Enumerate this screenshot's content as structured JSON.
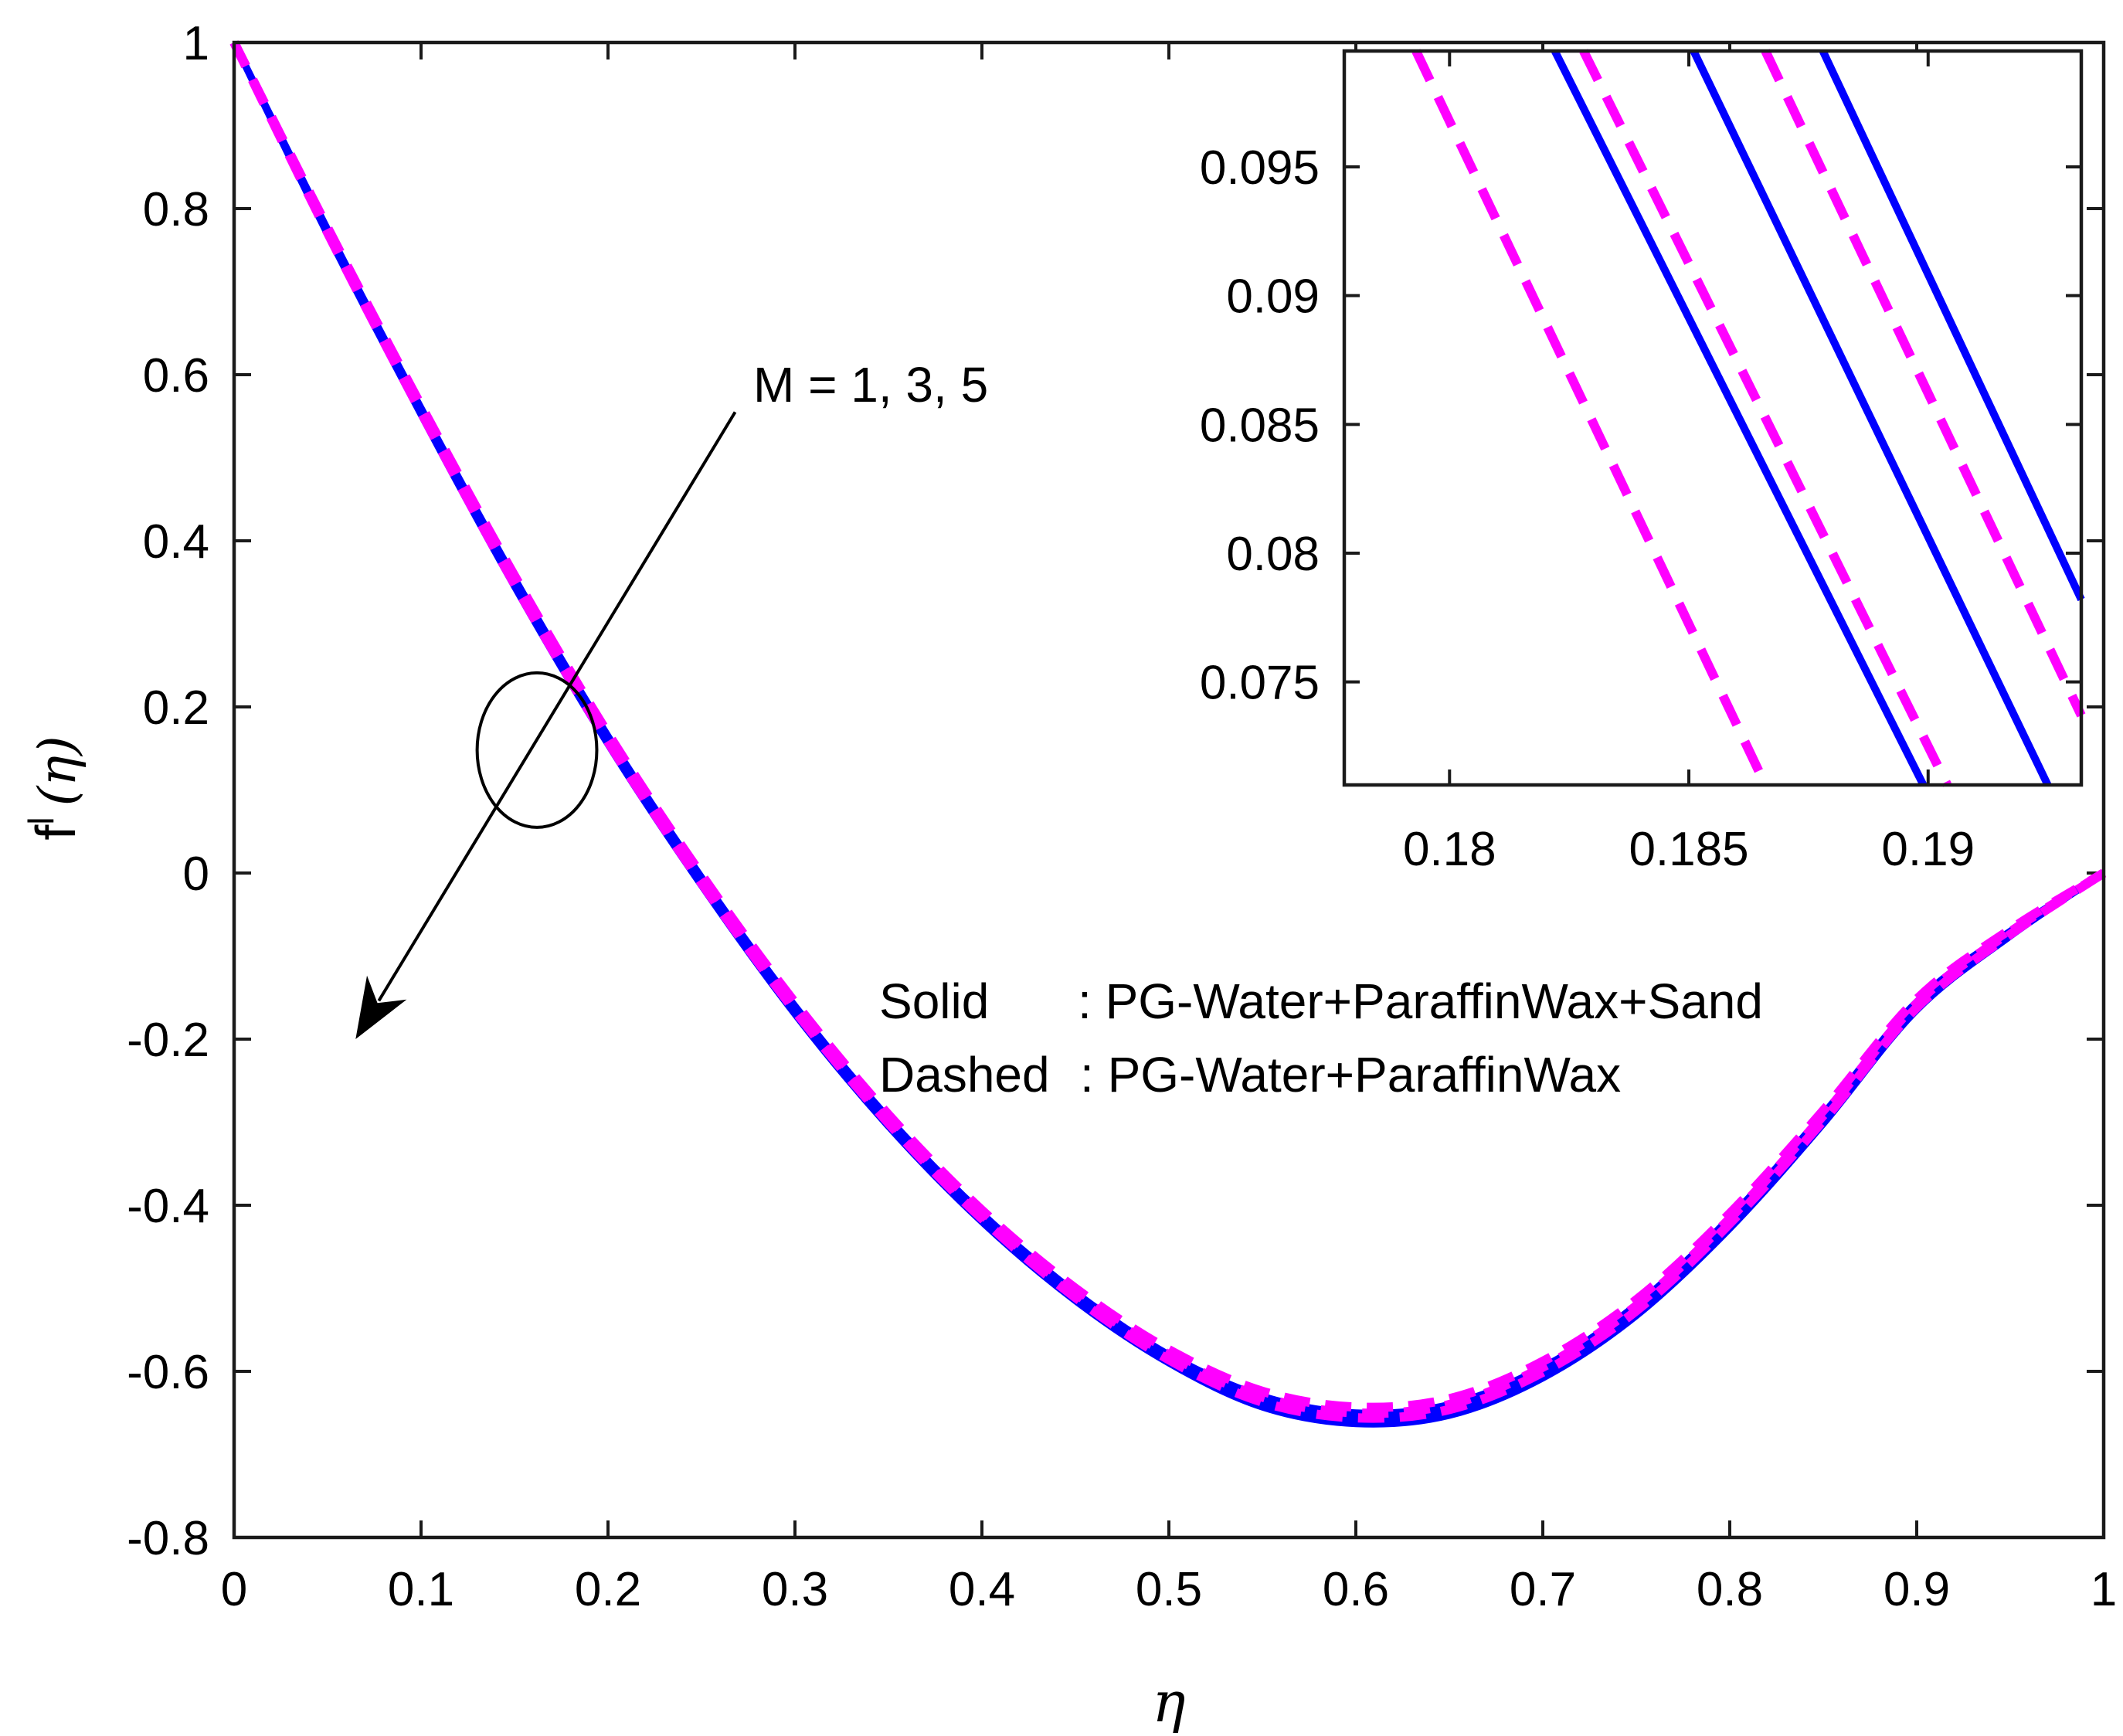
{
  "chart_data": [
    {
      "type": "line",
      "role": "main",
      "xlabel": "η",
      "ylabel_main": "f",
      "ylabel_sup": "l",
      "ylabel_arg": "(η)",
      "xlim": [
        0,
        1
      ],
      "ylim": [
        -0.8,
        1
      ],
      "xticks": [
        0,
        0.1,
        0.2,
        0.3,
        0.4,
        0.5,
        0.6,
        0.7,
        0.8,
        0.9,
        1
      ],
      "xtick_labels": [
        "0",
        "0.1",
        "0.2",
        "0.3",
        "0.4",
        "0.5",
        "0.6",
        "0.7",
        "0.8",
        "0.9",
        "1"
      ],
      "yticks": [
        1,
        0.8,
        0.6,
        0.4,
        0.2,
        0,
        -0.2,
        -0.4,
        -0.6,
        -0.8
      ],
      "ytick_labels": [
        "1",
        "0.8",
        "0.6",
        "0.4",
        "0.2",
        "0",
        "-0.2",
        "-0.4",
        "-0.6",
        "-0.8"
      ],
      "series": [
        {
          "name": "Solid M=1",
          "style": "solid",
          "color": "#0000ff",
          "x": [
            0,
            0.05,
            0.1,
            0.15,
            0.2,
            0.25,
            0.3,
            0.35,
            0.4,
            0.45,
            0.5,
            0.55,
            0.6,
            0.65,
            0.7,
            0.75,
            0.8,
            0.85,
            0.9,
            0.95,
            1
          ],
          "y": [
            1,
            0.775,
            0.56,
            0.355,
            0.165,
            -0.005,
            -0.16,
            -0.295,
            -0.41,
            -0.505,
            -0.58,
            -0.63,
            -0.65,
            -0.64,
            -0.595,
            -0.52,
            -0.415,
            -0.29,
            -0.155,
            -0.07,
            0
          ]
        },
        {
          "name": "Solid M=3",
          "style": "solid",
          "color": "#0000ff",
          "x": [
            0,
            0.05,
            0.1,
            0.15,
            0.2,
            0.25,
            0.3,
            0.35,
            0.4,
            0.45,
            0.5,
            0.55,
            0.6,
            0.65,
            0.7,
            0.75,
            0.8,
            0.85,
            0.9,
            0.95,
            1
          ],
          "y": [
            1,
            0.772,
            0.556,
            0.35,
            0.16,
            -0.01,
            -0.165,
            -0.3,
            -0.415,
            -0.51,
            -0.585,
            -0.637,
            -0.657,
            -0.647,
            -0.602,
            -0.527,
            -0.422,
            -0.296,
            -0.16,
            -0.073,
            0
          ]
        },
        {
          "name": "Solid M=5",
          "style": "solid",
          "color": "#0000ff",
          "x": [
            0,
            0.05,
            0.1,
            0.15,
            0.2,
            0.25,
            0.3,
            0.35,
            0.4,
            0.45,
            0.5,
            0.55,
            0.6,
            0.65,
            0.7,
            0.75,
            0.8,
            0.85,
            0.9,
            0.95,
            1
          ],
          "y": [
            1,
            0.769,
            0.552,
            0.345,
            0.155,
            -0.015,
            -0.17,
            -0.305,
            -0.42,
            -0.515,
            -0.59,
            -0.643,
            -0.663,
            -0.653,
            -0.608,
            -0.533,
            -0.428,
            -0.302,
            -0.165,
            -0.076,
            0
          ]
        },
        {
          "name": "Dashed M=1",
          "style": "dashed",
          "color": "#ff00ff",
          "x": [
            0,
            0.05,
            0.1,
            0.15,
            0.2,
            0.25,
            0.3,
            0.35,
            0.4,
            0.45,
            0.5,
            0.55,
            0.6,
            0.65,
            0.7,
            0.75,
            0.8,
            0.85,
            0.9,
            0.95,
            1
          ],
          "y": [
            1,
            0.777,
            0.563,
            0.358,
            0.168,
            -0.002,
            -0.156,
            -0.291,
            -0.406,
            -0.5,
            -0.574,
            -0.624,
            -0.643,
            -0.633,
            -0.588,
            -0.514,
            -0.41,
            -0.286,
            -0.152,
            -0.068,
            0
          ]
        },
        {
          "name": "Dashed M=3",
          "style": "dashed",
          "color": "#ff00ff",
          "x": [
            0,
            0.05,
            0.1,
            0.15,
            0.2,
            0.25,
            0.3,
            0.35,
            0.4,
            0.45,
            0.5,
            0.55,
            0.6,
            0.65,
            0.7,
            0.75,
            0.8,
            0.85,
            0.9,
            0.95,
            1
          ],
          "y": [
            1,
            0.774,
            0.559,
            0.353,
            0.163,
            -0.007,
            -0.161,
            -0.296,
            -0.411,
            -0.506,
            -0.58,
            -0.631,
            -0.65,
            -0.64,
            -0.595,
            -0.521,
            -0.416,
            -0.292,
            -0.157,
            -0.071,
            0
          ]
        },
        {
          "name": "Dashed M=5",
          "style": "dashed",
          "color": "#ff00ff",
          "x": [
            0,
            0.05,
            0.1,
            0.15,
            0.2,
            0.25,
            0.3,
            0.35,
            0.4,
            0.45,
            0.5,
            0.55,
            0.6,
            0.65,
            0.7,
            0.75,
            0.8,
            0.85,
            0.9,
            0.95,
            1
          ],
          "y": [
            1,
            0.771,
            0.555,
            0.348,
            0.158,
            -0.012,
            -0.166,
            -0.301,
            -0.416,
            -0.511,
            -0.586,
            -0.637,
            -0.656,
            -0.646,
            -0.601,
            -0.527,
            -0.422,
            -0.298,
            -0.162,
            -0.074,
            0
          ]
        }
      ],
      "annotations": {
        "parameter_label": "M = 1, 3, 5",
        "legend_solid_key": "Solid",
        "legend_solid_sep": ": PG-Water+ParaffinWax+Sand",
        "legend_dashed_key": "Dashed",
        "legend_dashed_sep": ": PG-Water+ParaffinWax",
        "circle_center": [
          0.162,
          0.148
        ],
        "circle_radii": [
          0.032,
          0.093
        ],
        "arrow_from": [
          0.268,
          0.555
        ],
        "arrow_to": [
          0.065,
          -0.2
        ]
      }
    },
    {
      "type": "line",
      "role": "inset",
      "xlim": [
        0.1778,
        0.1932
      ],
      "ylim": [
        0.071,
        0.0995
      ],
      "xticks": [
        0.18,
        0.185,
        0.19
      ],
      "xtick_labels": [
        "0.18",
        "0.185",
        "0.19"
      ],
      "yticks": [
        0.095,
        0.09,
        0.085,
        0.08,
        0.075
      ],
      "ytick_labels": [
        "0.095",
        "0.09",
        "0.085",
        "0.08",
        "0.075"
      ],
      "series": [
        {
          "name": "Dashed a",
          "style": "dashed",
          "color": "#ff00ff",
          "x": [
            0.1793,
            0.1866
          ],
          "y": [
            0.0995,
            0.071
          ]
        },
        {
          "name": "Solid a",
          "style": "solid",
          "color": "#0000ff",
          "x": [
            0.1822,
            0.1899
          ],
          "y": [
            0.0995,
            0.071
          ]
        },
        {
          "name": "Dashed b",
          "style": "dashed",
          "color": "#ff00ff",
          "x": [
            0.1828,
            0.1904
          ],
          "y": [
            0.0995,
            0.071
          ]
        },
        {
          "name": "Solid b",
          "style": "solid",
          "color": "#0000ff",
          "x": [
            0.1851,
            0.1925
          ],
          "y": [
            0.0995,
            0.071
          ]
        },
        {
          "name": "Dashed c",
          "style": "dashed",
          "color": "#ff00ff",
          "x": [
            0.1866,
            0.1932
          ],
          "y": [
            0.0995,
            0.0737
          ]
        },
        {
          "name": "Solid c",
          "style": "solid",
          "color": "#0000ff",
          "x": [
            0.1878,
            0.1932
          ],
          "y": [
            0.0995,
            0.0782
          ]
        }
      ]
    }
  ]
}
